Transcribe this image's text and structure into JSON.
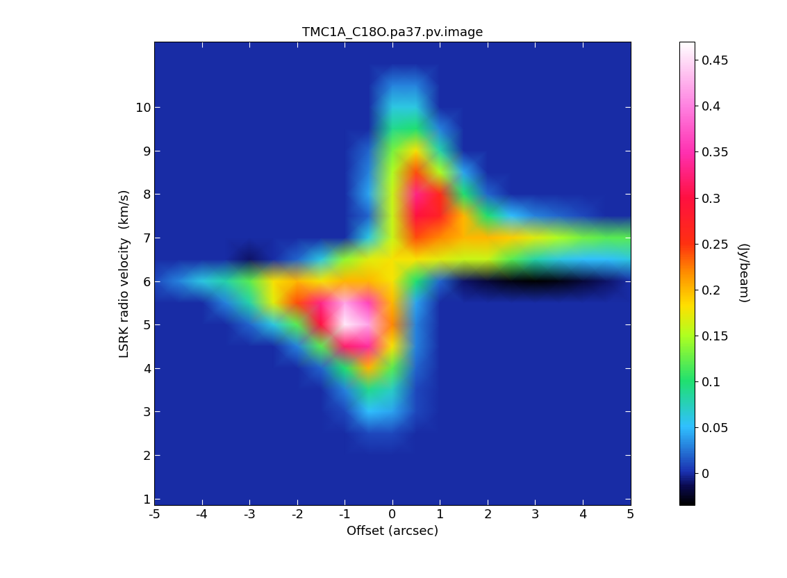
{
  "chart_data": {
    "type": "heatmap",
    "title": "TMC1A_C18O.pa37.pv.image",
    "x_label": "Offset (arcsec)",
    "y_label": "LSRK radio velocity  (km/s)",
    "x": [
      -5,
      -4.5,
      -4,
      -3.5,
      -3,
      -2.5,
      -2,
      -1.5,
      -1,
      -0.5,
      0,
      0.5,
      1,
      1.5,
      2,
      2.5,
      3,
      3.5,
      4,
      4.5,
      5
    ],
    "y": [
      0.5,
      1,
      1.5,
      2,
      2.5,
      3,
      3.5,
      4,
      4.5,
      5,
      5.5,
      6,
      6.5,
      7,
      7.5,
      8,
      8.5,
      9,
      9.5,
      10,
      10.5,
      11,
      11.5
    ],
    "cells": [
      [
        0,
        0,
        0,
        0,
        0,
        0,
        0,
        0,
        0,
        0,
        0,
        0,
        0,
        0,
        0,
        0,
        0,
        0,
        0,
        0,
        0
      ],
      [
        0,
        0,
        0,
        0,
        0,
        0,
        0,
        0,
        0,
        0,
        0,
        0,
        0,
        0,
        0,
        0,
        0,
        0,
        0,
        0,
        0
      ],
      [
        0,
        0,
        0,
        0,
        0,
        0,
        0,
        0,
        0,
        0,
        0,
        0,
        0,
        0,
        0,
        0,
        0,
        0,
        0,
        0,
        0
      ],
      [
        0,
        0,
        0,
        0,
        0,
        0,
        0,
        0,
        0,
        0,
        0,
        0,
        0,
        0,
        0,
        0,
        0,
        0,
        0,
        0,
        0
      ],
      [
        0,
        0,
        0,
        0,
        0,
        0,
        0,
        0,
        0,
        0.01,
        0.01,
        0,
        0,
        0,
        0,
        0,
        0,
        0,
        0,
        0,
        0
      ],
      [
        0,
        0,
        0,
        0,
        0,
        0,
        0,
        0,
        0.01,
        0.05,
        0.04,
        0.01,
        0,
        0,
        0,
        0,
        0,
        0,
        0,
        0,
        0
      ],
      [
        0,
        0,
        0,
        0,
        0,
        0,
        0,
        0,
        0.03,
        0.09,
        0.07,
        0.01,
        0,
        0,
        0,
        0,
        0,
        0,
        0,
        0,
        0
      ],
      [
        0,
        0,
        0,
        0,
        0,
        0,
        0,
        0.02,
        0.1,
        0.2,
        0.12,
        0.02,
        0,
        0,
        0,
        0,
        0,
        0,
        0,
        0,
        0
      ],
      [
        0,
        0,
        0,
        0,
        0,
        0,
        0.03,
        0.12,
        0.32,
        0.34,
        0.18,
        0.03,
        0,
        0,
        0,
        0,
        0,
        0,
        0,
        0,
        0
      ],
      [
        0,
        0,
        0,
        0,
        0.02,
        0.06,
        0.12,
        0.3,
        0.46,
        0.42,
        0.22,
        0.03,
        0,
        0,
        0,
        0,
        0,
        0,
        0,
        0,
        0
      ],
      [
        0,
        0,
        0,
        0.03,
        0.08,
        0.17,
        0.24,
        0.33,
        0.42,
        0.36,
        0.2,
        0.04,
        0,
        0,
        0,
        0,
        0,
        0,
        0,
        0,
        0
      ],
      [
        0.01,
        0.03,
        0.06,
        0.08,
        0.12,
        0.18,
        0.2,
        0.18,
        0.2,
        0.2,
        0.18,
        0.1,
        0.02,
        -0.01,
        -0.02,
        -0.03,
        -0.04,
        -0.03,
        -0.02,
        -0.01,
        0
      ],
      [
        0,
        0,
        0,
        0,
        -0.01,
        0,
        0.02,
        0.06,
        0.14,
        0.17,
        0.18,
        0.18,
        0.17,
        0.16,
        0.16,
        0.12,
        0.08,
        0.06,
        0.05,
        0.05,
        0.06
      ],
      [
        0,
        0,
        0,
        0,
        0,
        0,
        0,
        0,
        0,
        0.06,
        0.16,
        0.24,
        0.22,
        0.2,
        0.2,
        0.19,
        0.17,
        0.15,
        0.13,
        0.12,
        0.12
      ],
      [
        0,
        0,
        0,
        0,
        0,
        0,
        0,
        0,
        0,
        0.02,
        0.16,
        0.3,
        0.27,
        0.2,
        0.1,
        0.05,
        0.03,
        0.02,
        0.01,
        0,
        0
      ],
      [
        0,
        0,
        0,
        0,
        0,
        0,
        0,
        0,
        0,
        0.04,
        0.16,
        0.33,
        0.26,
        0.1,
        0.02,
        0,
        0,
        0,
        0,
        0,
        0
      ],
      [
        0,
        0,
        0,
        0,
        0,
        0,
        0,
        0,
        0,
        0.03,
        0.15,
        0.24,
        0.15,
        0.04,
        0,
        0,
        0,
        0,
        0,
        0,
        0
      ],
      [
        0,
        0,
        0,
        0,
        0,
        0,
        0,
        0,
        0,
        0.02,
        0.13,
        0.18,
        0.08,
        0,
        0,
        0,
        0,
        0,
        0,
        0,
        0
      ],
      [
        0,
        0,
        0,
        0,
        0,
        0,
        0,
        0,
        0,
        0,
        0.09,
        0.1,
        0.03,
        0,
        0,
        0,
        0,
        0,
        0,
        0,
        0
      ],
      [
        0,
        0,
        0,
        0,
        0,
        0,
        0,
        0,
        0,
        0,
        0.06,
        0.06,
        0,
        0,
        0,
        0,
        0,
        0,
        0,
        0,
        0
      ],
      [
        0,
        0,
        0,
        0,
        0,
        0,
        0,
        0,
        0,
        0,
        0.03,
        0.03,
        0,
        0,
        0,
        0,
        0,
        0,
        0,
        0,
        0
      ],
      [
        0,
        0,
        0,
        0,
        0,
        0,
        0,
        0,
        0,
        0,
        0,
        0,
        0,
        0,
        0,
        0,
        0,
        0,
        0,
        0,
        0
      ],
      [
        0,
        0,
        0,
        0,
        0,
        0,
        0,
        0,
        0,
        0,
        0,
        0,
        0,
        0,
        0,
        0,
        0,
        0,
        0,
        0,
        0
      ]
    ],
    "xlim": [
      -5,
      5
    ],
    "xticks": [
      -5,
      -4,
      -3,
      -2,
      -1,
      0,
      1,
      2,
      3,
      4,
      5
    ],
    "ylim": [
      0.85,
      11.5
    ],
    "yticks": [
      1,
      2,
      3,
      4,
      5,
      6,
      7,
      8,
      9,
      10
    ],
    "colorbar_label": "(Jy/beam)",
    "colorbar_range": [
      -0.035,
      0.47
    ],
    "colorbar_ticks": [
      0,
      0.05,
      0.1,
      0.15,
      0.2,
      0.25,
      0.3,
      0.35,
      0.4,
      0.45
    ]
  }
}
